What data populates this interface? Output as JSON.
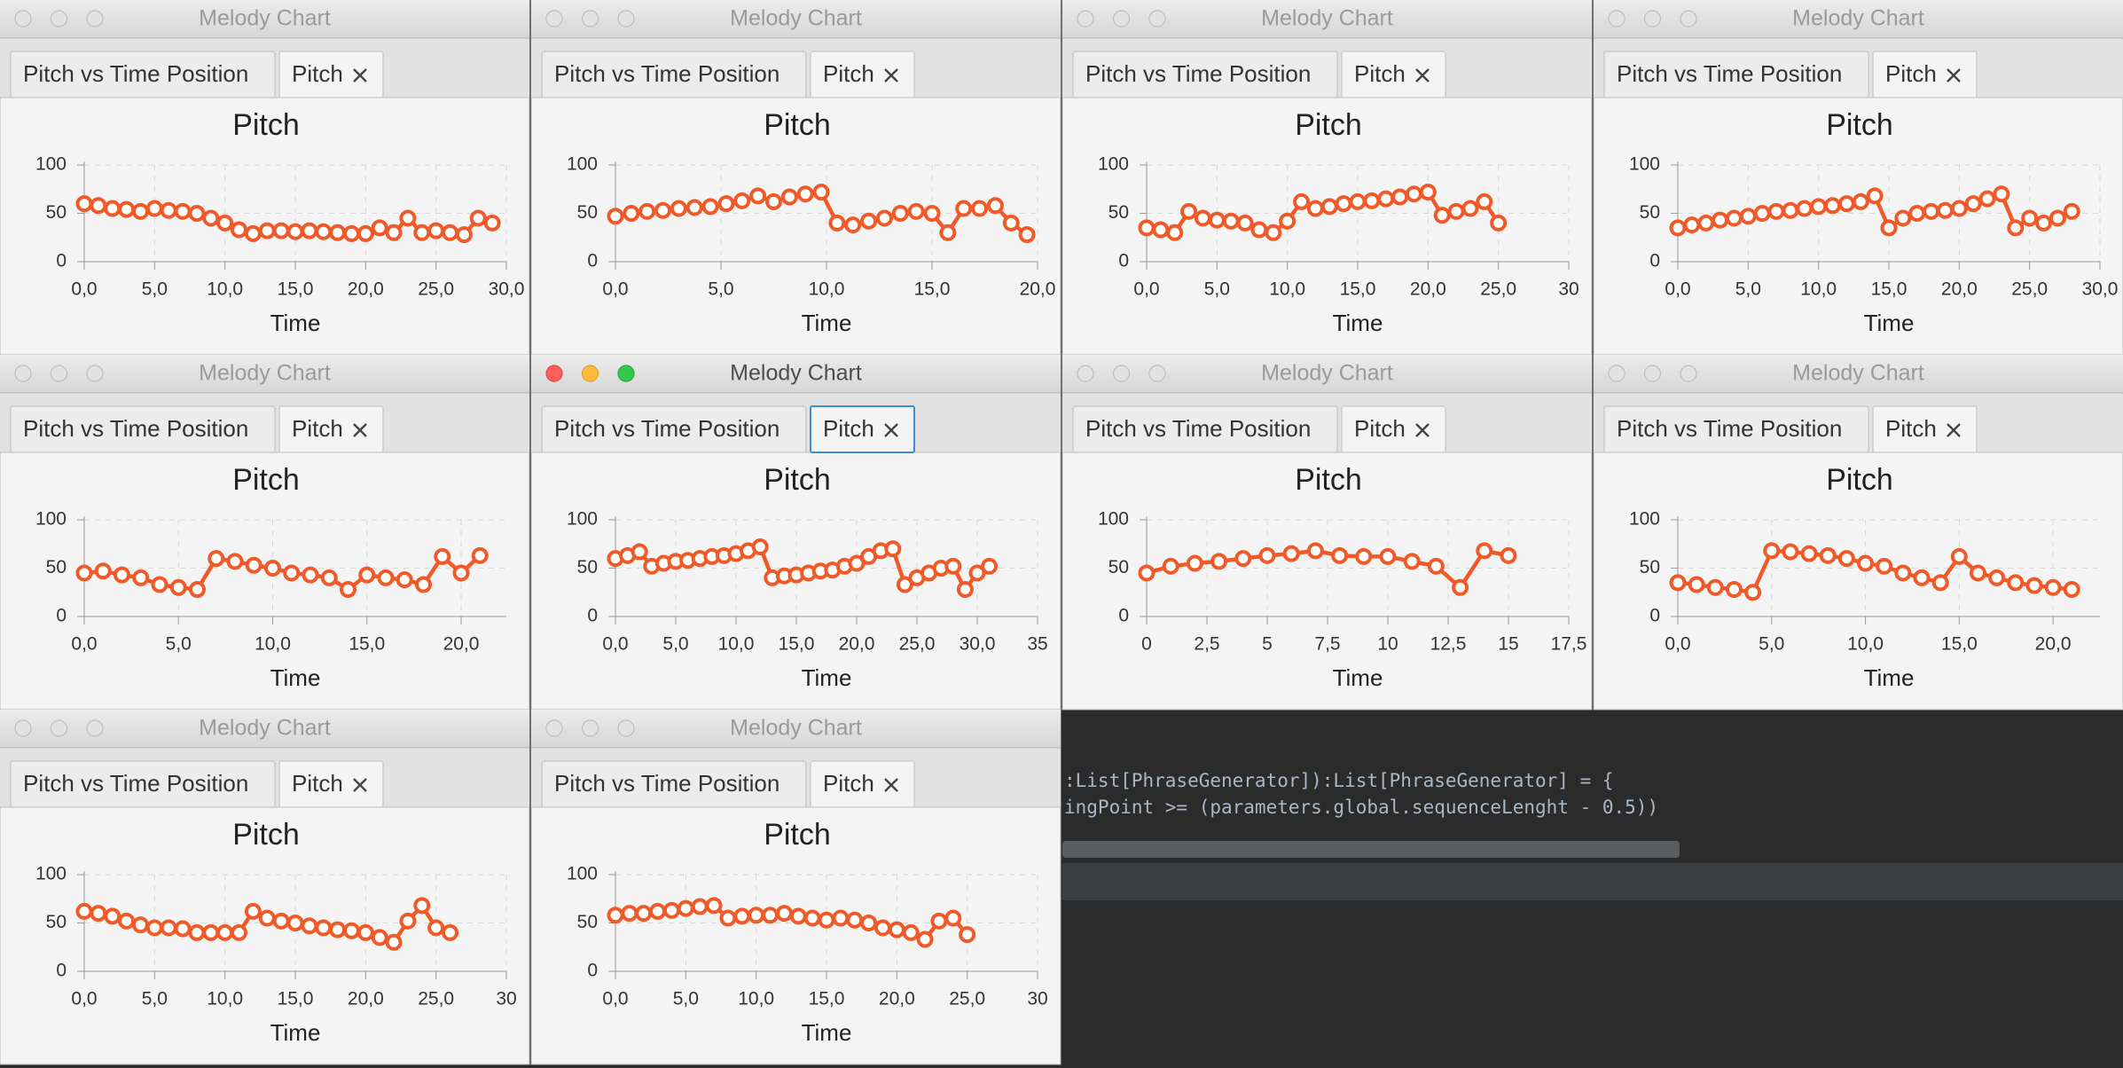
{
  "code_lines": [
    ":List[PhraseGenerator]):List[PhraseGenerator] = {",
    "ingPoint >= (parameters.global.sequenceLenght - 0.5))"
  ],
  "windows": [
    {
      "title": "Melody Chart",
      "active": false,
      "tabs": [
        "Pitch vs Time Position",
        "Pitch"
      ],
      "chart": {
        "type": "line",
        "title": "Pitch",
        "xlabel": "Time",
        "color": "#f05a28",
        "x": [
          0,
          1,
          2,
          3,
          4,
          5,
          6,
          7,
          8,
          9,
          10,
          11,
          12,
          13,
          14,
          15,
          16,
          17,
          18,
          19,
          20,
          21,
          22,
          23,
          24,
          25,
          26,
          27,
          28,
          29
        ],
        "values": [
          60,
          58,
          55,
          54,
          52,
          55,
          53,
          52,
          50,
          45,
          40,
          33,
          29,
          32,
          32,
          31,
          32,
          31,
          30,
          29,
          29,
          35,
          30,
          45,
          30,
          32,
          30,
          28,
          45,
          40
        ],
        "xlim": [
          0,
          30
        ],
        "ylim": [
          0,
          100
        ],
        "yticks": [
          0,
          50,
          100
        ],
        "xticks": [
          {
            "value": 0,
            "label": "0,0"
          },
          {
            "value": 5,
            "label": "5,0"
          },
          {
            "value": 10,
            "label": "10,0"
          },
          {
            "value": 15,
            "label": "15,0"
          },
          {
            "value": 20,
            "label": "20,0"
          },
          {
            "value": 25,
            "label": "25,0"
          },
          {
            "value": 30,
            "label": "30,0"
          }
        ]
      }
    },
    {
      "title": "Melody Chart",
      "active": false,
      "tabs": [
        "Pitch vs Time Position",
        "Pitch"
      ],
      "chart": {
        "type": "line",
        "title": "Pitch",
        "xlabel": "Time",
        "color": "#f05a28",
        "x": [
          0,
          0.75,
          1.5,
          2.25,
          3,
          3.75,
          4.5,
          5.25,
          6,
          6.75,
          7.5,
          8.25,
          9,
          9.75,
          10.5,
          11.25,
          12,
          12.75,
          13.5,
          14.25,
          15,
          15.75,
          16.5,
          17.25,
          18,
          18.75,
          19.5
        ],
        "values": [
          47,
          50,
          52,
          53,
          55,
          56,
          57,
          60,
          63,
          68,
          62,
          67,
          70,
          72,
          40,
          38,
          42,
          45,
          50,
          52,
          50,
          30,
          55,
          55,
          58,
          40,
          28
        ],
        "xlim": [
          0,
          20
        ],
        "ylim": [
          0,
          100
        ],
        "yticks": [
          0,
          50,
          100
        ],
        "xticks": [
          {
            "value": 0,
            "label": "0,0"
          },
          {
            "value": 5,
            "label": "5,0"
          },
          {
            "value": 10,
            "label": "10,0"
          },
          {
            "value": 15,
            "label": "15,0"
          },
          {
            "value": 20,
            "label": "20,0"
          }
        ]
      }
    },
    {
      "title": "Melody Chart",
      "active": false,
      "tabs": [
        "Pitch vs Time Position",
        "Pitch"
      ],
      "chart": {
        "type": "line",
        "title": "Pitch",
        "xlabel": "Time",
        "color": "#f05a28",
        "x": [
          0,
          1,
          2,
          3,
          4,
          5,
          6,
          7,
          8,
          9,
          10,
          11,
          12,
          13,
          14,
          15,
          16,
          17,
          18,
          19,
          20,
          21,
          22,
          23,
          24,
          25
        ],
        "values": [
          35,
          33,
          30,
          52,
          45,
          43,
          42,
          40,
          33,
          30,
          42,
          62,
          55,
          57,
          60,
          62,
          63,
          65,
          67,
          70,
          72,
          48,
          52,
          55,
          62,
          40
        ],
        "xlim": [
          0,
          30
        ],
        "ylim": [
          0,
          100
        ],
        "yticks": [
          0,
          50,
          100
        ],
        "xticks": [
          {
            "value": 0,
            "label": "0,0"
          },
          {
            "value": 5,
            "label": "5,0"
          },
          {
            "value": 10,
            "label": "10,0"
          },
          {
            "value": 15,
            "label": "15,0"
          },
          {
            "value": 20,
            "label": "20,0"
          },
          {
            "value": 25,
            "label": "25,0"
          },
          30
        ]
      }
    },
    {
      "title": "Melody Chart",
      "active": false,
      "tabs": [
        "Pitch vs Time Position",
        "Pitch"
      ],
      "chart": {
        "type": "line",
        "title": "Pitch",
        "xlabel": "Time",
        "color": "#f05a28",
        "x": [
          0,
          1,
          2,
          3,
          4,
          5,
          6,
          7,
          8,
          9,
          10,
          11,
          12,
          13,
          14,
          15,
          16,
          17,
          18,
          19,
          20,
          21,
          22,
          23,
          24,
          25,
          26,
          27,
          28
        ],
        "values": [
          35,
          38,
          40,
          43,
          45,
          47,
          50,
          52,
          53,
          55,
          57,
          58,
          60,
          62,
          68,
          35,
          45,
          50,
          52,
          53,
          55,
          60,
          65,
          70,
          35,
          45,
          40,
          45,
          52
        ],
        "xlim": [
          0,
          30
        ],
        "ylim": [
          0,
          100
        ],
        "yticks": [
          0,
          50,
          100
        ],
        "xticks": [
          {
            "value": 0,
            "label": "0,0"
          },
          {
            "value": 5,
            "label": "5,0"
          },
          {
            "value": 10,
            "label": "10,0"
          },
          {
            "value": 15,
            "label": "15,0"
          },
          {
            "value": 20,
            "label": "20,0"
          },
          {
            "value": 25,
            "label": "25,0"
          },
          {
            "value": 30,
            "label": "30,0"
          }
        ]
      }
    },
    {
      "title": "Melody Chart",
      "active": false,
      "tabs": [
        "Pitch vs Time Position",
        "Pitch"
      ],
      "chart": {
        "type": "line",
        "title": "Pitch",
        "xlabel": "Time",
        "color": "#f05a28",
        "x": [
          0,
          1,
          2,
          3,
          4,
          5,
          6,
          7,
          8,
          9,
          10,
          11,
          12,
          13,
          14,
          15,
          16,
          17,
          18,
          19,
          20,
          21
        ],
        "values": [
          45,
          47,
          43,
          40,
          33,
          30,
          28,
          60,
          57,
          53,
          50,
          45,
          43,
          40,
          28,
          43,
          40,
          38,
          33,
          62,
          45,
          63
        ],
        "xlim": [
          0,
          22.4
        ],
        "ylim": [
          0,
          100
        ],
        "yticks": [
          0,
          50,
          100
        ],
        "xticks": [
          {
            "value": 0,
            "label": "0,0"
          },
          {
            "value": 5,
            "label": "5,0"
          },
          {
            "value": 10,
            "label": "10,0"
          },
          {
            "value": 15,
            "label": "15,0"
          },
          {
            "value": 20,
            "label": "20,0"
          }
        ]
      }
    },
    {
      "title": "Melody Chart",
      "active": true,
      "tabs": [
        "Pitch vs Time Position",
        "Pitch"
      ],
      "chart": {
        "type": "line",
        "title": "Pitch",
        "xlabel": "Time",
        "color": "#f05a28",
        "x": [
          0,
          1,
          2,
          3,
          4,
          5,
          6,
          7,
          8,
          9,
          10,
          11,
          12,
          13,
          14,
          15,
          16,
          17,
          18,
          19,
          20,
          21,
          22,
          23,
          24,
          25,
          26,
          27,
          28,
          29,
          30,
          31
        ],
        "values": [
          60,
          63,
          67,
          52,
          55,
          57,
          58,
          60,
          62,
          63,
          65,
          68,
          72,
          40,
          42,
          43,
          45,
          47,
          48,
          52,
          55,
          62,
          68,
          70,
          33,
          40,
          45,
          50,
          52,
          28,
          45,
          52
        ],
        "xlim": [
          0,
          35
        ],
        "ylim": [
          0,
          100
        ],
        "yticks": [
          0,
          50,
          100
        ],
        "xticks": [
          {
            "value": 0,
            "label": "0,0"
          },
          {
            "value": 5,
            "label": "5,0"
          },
          {
            "value": 10,
            "label": "10,0"
          },
          {
            "value": 15,
            "label": "15,0"
          },
          {
            "value": 20,
            "label": "20,0"
          },
          {
            "value": 25,
            "label": "25,0"
          },
          {
            "value": 30,
            "label": "30,0"
          },
          35
        ]
      }
    },
    {
      "title": "Melody Chart",
      "active": false,
      "tabs": [
        "Pitch vs Time Position",
        "Pitch"
      ],
      "chart": {
        "type": "line",
        "title": "Pitch",
        "xlabel": "Time",
        "color": "#f05a28",
        "x": [
          0,
          1,
          2,
          3,
          4,
          5,
          6,
          7,
          8,
          9,
          10,
          11,
          12,
          13,
          14,
          15
        ],
        "values": [
          45,
          52,
          55,
          57,
          60,
          63,
          65,
          68,
          63,
          62,
          62,
          57,
          52,
          30,
          68,
          63
        ],
        "xlim": [
          0,
          17.5
        ],
        "ylim": [
          0,
          100
        ],
        "yticks": [
          0,
          50,
          100
        ],
        "xticks": [
          0,
          {
            "value": 2.5,
            "label": "2,5"
          },
          5,
          {
            "value": 7.5,
            "label": "7,5"
          },
          10,
          {
            "value": 12.5,
            "label": "12,5"
          },
          15,
          {
            "value": 17.5,
            "label": "17,5"
          }
        ]
      }
    },
    {
      "title": "Melody Chart",
      "active": false,
      "tabs": [
        "Pitch vs Time Position",
        "Pitch"
      ],
      "chart": {
        "type": "line",
        "title": "Pitch",
        "xlabel": "Time",
        "color": "#f05a28",
        "x": [
          0,
          1,
          2,
          3,
          4,
          5,
          6,
          7,
          8,
          9,
          10,
          11,
          12,
          13,
          14,
          15,
          16,
          17,
          18,
          19,
          20,
          21
        ],
        "values": [
          35,
          33,
          30,
          28,
          25,
          68,
          67,
          65,
          63,
          60,
          55,
          52,
          45,
          40,
          35,
          62,
          45,
          40,
          35,
          32,
          30,
          28
        ],
        "xlim": [
          0,
          22.5
        ],
        "ylim": [
          0,
          100
        ],
        "yticks": [
          0,
          50,
          100
        ],
        "xticks": [
          {
            "value": 0,
            "label": "0,0"
          },
          {
            "value": 5,
            "label": "5,0"
          },
          {
            "value": 10,
            "label": "10,0"
          },
          {
            "value": 15,
            "label": "15,0"
          },
          {
            "value": 20,
            "label": "20,0"
          }
        ]
      }
    },
    {
      "title": "Melody Chart",
      "active": false,
      "tabs": [
        "Pitch vs Time Position",
        "Pitch"
      ],
      "chart": {
        "type": "line",
        "title": "Pitch",
        "xlabel": "Time",
        "color": "#f05a28",
        "x": [
          0,
          1,
          2,
          3,
          4,
          5,
          6,
          7,
          8,
          9,
          10,
          11,
          12,
          13,
          14,
          15,
          16,
          17,
          18,
          19,
          20,
          21,
          22,
          23,
          24,
          25,
          26
        ],
        "values": [
          62,
          60,
          57,
          52,
          48,
          45,
          45,
          44,
          40,
          40,
          40,
          40,
          62,
          55,
          52,
          50,
          47,
          45,
          43,
          42,
          40,
          35,
          30,
          52,
          68,
          45,
          40
        ],
        "xlim": [
          0,
          30
        ],
        "ylim": [
          0,
          100
        ],
        "yticks": [
          0,
          50,
          100
        ],
        "xticks": [
          {
            "value": 0,
            "label": "0,0"
          },
          {
            "value": 5,
            "label": "5,0"
          },
          {
            "value": 10,
            "label": "10,0"
          },
          {
            "value": 15,
            "label": "15,0"
          },
          {
            "value": 20,
            "label": "20,0"
          },
          {
            "value": 25,
            "label": "25,0"
          },
          30
        ]
      }
    },
    {
      "title": "Melody Chart",
      "active": false,
      "tabs": [
        "Pitch vs Time Position",
        "Pitch"
      ],
      "chart": {
        "type": "line",
        "title": "Pitch",
        "xlabel": "Time",
        "color": "#f05a28",
        "x": [
          0,
          1,
          2,
          3,
          4,
          5,
          6,
          7,
          8,
          9,
          10,
          11,
          12,
          13,
          14,
          15,
          16,
          17,
          18,
          19,
          20,
          21,
          22,
          23,
          24,
          25
        ],
        "values": [
          58,
          60,
          60,
          62,
          63,
          65,
          67,
          68,
          55,
          57,
          58,
          58,
          60,
          57,
          55,
          53,
          55,
          53,
          50,
          45,
          43,
          40,
          33,
          52,
          55,
          38
        ],
        "xlim": [
          0,
          30
        ],
        "ylim": [
          0,
          100
        ],
        "yticks": [
          0,
          50,
          100
        ],
        "xticks": [
          {
            "value": 0,
            "label": "0,0"
          },
          {
            "value": 5,
            "label": "5,0"
          },
          {
            "value": 10,
            "label": "10,0"
          },
          {
            "value": 15,
            "label": "15,0"
          },
          {
            "value": 20,
            "label": "20,0"
          },
          {
            "value": 25,
            "label": "25,0"
          },
          30
        ]
      }
    }
  ]
}
